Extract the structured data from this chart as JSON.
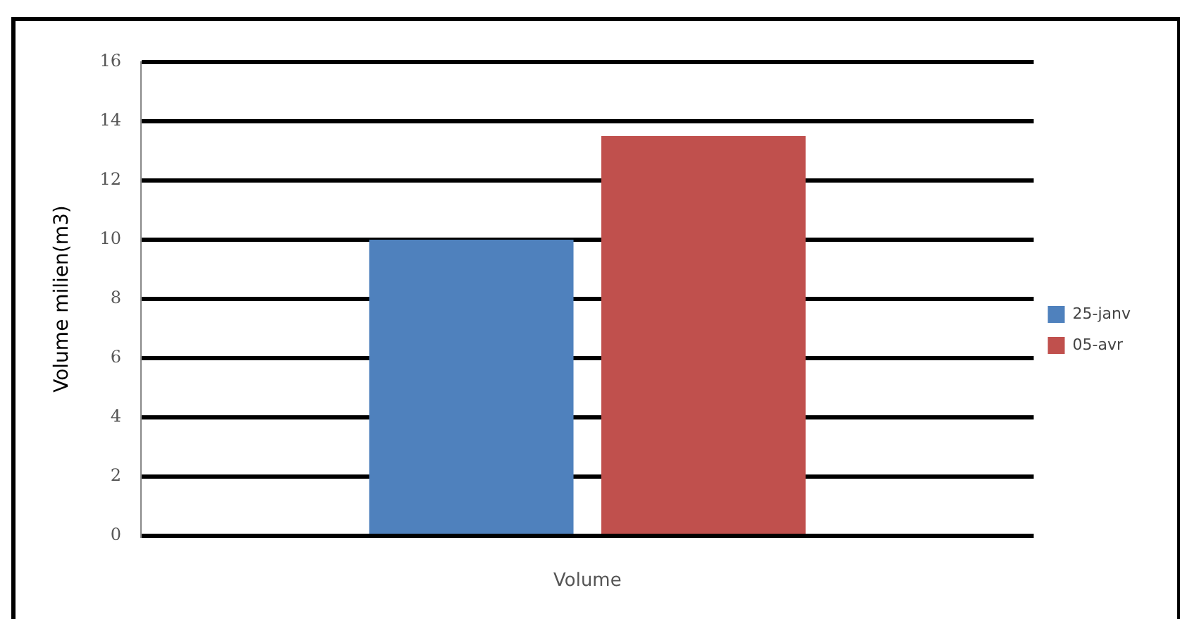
{
  "chart_data": {
    "type": "bar",
    "xlabel": "Volume",
    "ylabel": "Volume milien(m3)",
    "categories": [
      null
    ],
    "series": [
      {
        "name": "25-janv",
        "color": "#4f81bd",
        "values": [
          10
        ]
      },
      {
        "name": "05-avr",
        "color": "#c0504d",
        "values": [
          13.5
        ]
      }
    ],
    "ylim": [
      0,
      16
    ],
    "yticks": [
      0,
      2,
      4,
      6,
      8,
      10,
      12,
      14,
      16
    ],
    "grid": "y",
    "legend": "right"
  }
}
